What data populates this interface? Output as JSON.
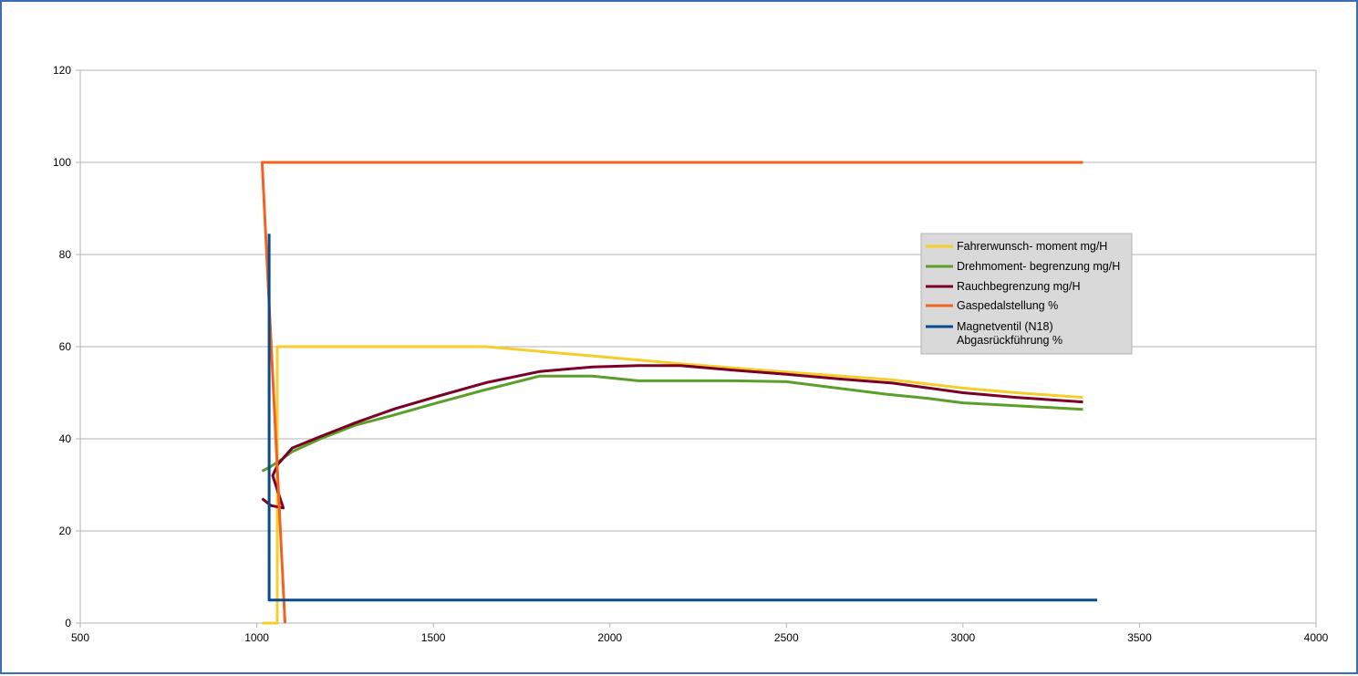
{
  "chart_data": {
    "type": "line",
    "title": "",
    "xlabel": "",
    "ylabel": "",
    "xlim": [
      500,
      4000
    ],
    "ylim": [
      0,
      120
    ],
    "xticks": [
      "500",
      "1000",
      "1500",
      "2000",
      "2500",
      "3000",
      "3500",
      "4000"
    ],
    "yticks": [
      "0",
      "20",
      "40",
      "60",
      "80",
      "100",
      "120"
    ],
    "grid": "horizontal",
    "legend_position": "right",
    "series": [
      {
        "name": "Fahrerwunsch- moment  mg/H",
        "color": "#f5cd2c",
        "points": [
          [
            1015,
            0
          ],
          [
            1058,
            0
          ],
          [
            1058,
            60
          ],
          [
            1650,
            60
          ],
          [
            1800,
            59
          ],
          [
            1950,
            58
          ],
          [
            2200,
            56.3
          ],
          [
            2500,
            54.5
          ],
          [
            2800,
            52.8
          ],
          [
            3000,
            51
          ],
          [
            3150,
            50
          ],
          [
            3340,
            49
          ]
        ]
      },
      {
        "name": "Drehmoment- begrenzung  mg/H",
        "color": "#5c9e2a",
        "points": [
          [
            1015,
            33
          ],
          [
            1040,
            34
          ],
          [
            1070,
            35.5
          ],
          [
            1100,
            37.2
          ],
          [
            1180,
            40
          ],
          [
            1280,
            43
          ],
          [
            1380,
            45
          ],
          [
            1520,
            48
          ],
          [
            1640,
            50.5
          ],
          [
            1800,
            53.6
          ],
          [
            1950,
            53.6
          ],
          [
            2080,
            52.6
          ],
          [
            2350,
            52.6
          ],
          [
            2500,
            52.4
          ],
          [
            2780,
            49.7
          ],
          [
            2900,
            48.8
          ],
          [
            3000,
            47.8
          ],
          [
            3340,
            46.4
          ]
        ]
      },
      {
        "name": "Rauchbegrenzung   mg/H",
        "color": "#7a0026",
        "points": [
          [
            1015,
            27
          ],
          [
            1040,
            25.5
          ],
          [
            1075,
            25
          ],
          [
            1045,
            32
          ],
          [
            1060,
            34.5
          ],
          [
            1100,
            38
          ],
          [
            1180,
            40.5
          ],
          [
            1280,
            43.5
          ],
          [
            1390,
            46.5
          ],
          [
            1520,
            49.4
          ],
          [
            1650,
            52.2
          ],
          [
            1800,
            54.6
          ],
          [
            1950,
            55.6
          ],
          [
            2080,
            55.9
          ],
          [
            2200,
            55.9
          ],
          [
            2350,
            54.9
          ],
          [
            2500,
            54
          ],
          [
            2650,
            53
          ],
          [
            2800,
            52.1
          ],
          [
            3000,
            50
          ],
          [
            3150,
            49
          ],
          [
            3340,
            48
          ]
        ]
      },
      {
        "name": "Gaspedalstellung    %",
        "color": "#f26322",
        "points": [
          [
            1080,
            0
          ],
          [
            1015,
            100
          ],
          [
            3340,
            100
          ]
        ]
      },
      {
        "name": "Magnetventil (N18)  Abgasrückführung  %",
        "color": "#084a8a",
        "points": [
          [
            1035,
            84.5
          ],
          [
            1035,
            5
          ],
          [
            3380,
            5
          ]
        ]
      }
    ]
  },
  "legend": {
    "entries": [
      {
        "label": "Fahrerwunsch- moment  mg/H",
        "color": "#f5cd2c"
      },
      {
        "label": "Drehmoment- begrenzung  mg/H",
        "color": "#5c9e2a"
      },
      {
        "label": "Rauchbegrenzung   mg/H",
        "color": "#7a0026"
      },
      {
        "label": "Gaspedalstellung    %",
        "color": "#f26322"
      },
      {
        "label": "Magnetventil (N18)",
        "label2": "Abgasrückführung  %",
        "color": "#084a8a"
      }
    ]
  }
}
